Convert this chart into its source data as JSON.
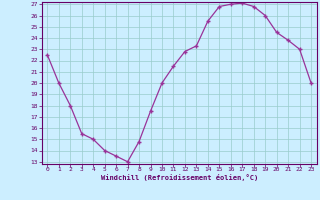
{
  "x": [
    0,
    1,
    2,
    3,
    4,
    5,
    6,
    7,
    8,
    9,
    10,
    11,
    12,
    13,
    14,
    15,
    16,
    17,
    18,
    19,
    20,
    21,
    22,
    23
  ],
  "y": [
    22.5,
    20.0,
    18.0,
    15.5,
    15.0,
    14.0,
    13.5,
    13.0,
    14.8,
    17.5,
    20.0,
    21.5,
    22.8,
    23.3,
    25.5,
    26.8,
    27.0,
    27.1,
    26.8,
    26.0,
    24.5,
    23.8,
    23.0,
    20.0
  ],
  "xlabel": "Windchill (Refroidissement éolien,°C)",
  "ylim_min": 13,
  "ylim_max": 27,
  "xlim_min": -0.5,
  "xlim_max": 23.5,
  "yticks": [
    13,
    14,
    15,
    16,
    17,
    18,
    19,
    20,
    21,
    22,
    23,
    24,
    25,
    26,
    27
  ],
  "xticks": [
    0,
    1,
    2,
    3,
    4,
    5,
    6,
    7,
    8,
    9,
    10,
    11,
    12,
    13,
    14,
    15,
    16,
    17,
    18,
    19,
    20,
    21,
    22,
    23
  ],
  "line_color": "#993399",
  "marker_color": "#993399",
  "bg_color": "#cceeff",
  "grid_color": "#99cccc",
  "axis_label_color": "#660066",
  "tick_label_color": "#660066",
  "border_color": "#660066"
}
